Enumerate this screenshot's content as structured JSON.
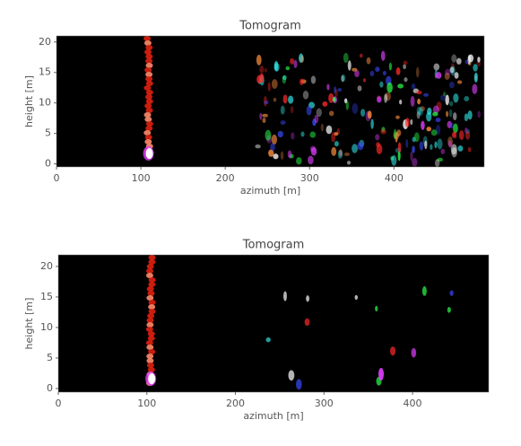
{
  "chart_data": [
    {
      "type": "image",
      "title": "Tomogram",
      "xlabel": "azimuth [m]",
      "ylabel": "height [m]",
      "xlim": [
        0,
        507
      ],
      "ylim": [
        -0.5,
        21
      ],
      "xticks": [
        0,
        100,
        200,
        300,
        400
      ],
      "yticks": [
        0,
        5,
        10,
        15,
        20
      ]
    },
    {
      "type": "image",
      "title": "Tomogram",
      "xlabel": "azimuth [m]",
      "ylabel": "height [m]",
      "xlim": [
        0,
        486
      ],
      "ylim": [
        -0.6,
        21.9
      ],
      "xticks": [
        0,
        100,
        200,
        300,
        400
      ],
      "yticks": [
        0,
        5,
        10,
        15,
        20
      ]
    }
  ]
}
